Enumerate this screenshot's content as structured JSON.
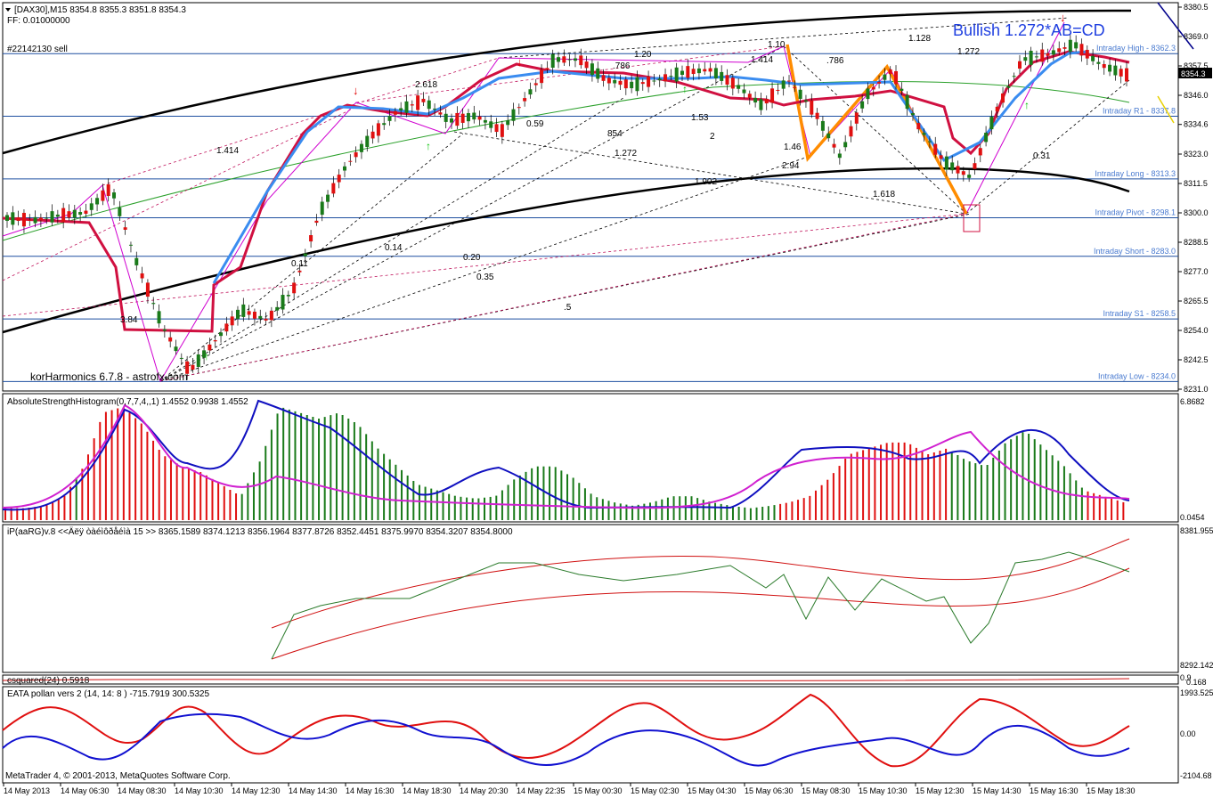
{
  "header": {
    "symbol_line": "[DAX30],M15  8354.8 8355.3 8351.8 8354.3",
    "ff_line": "FF: 0.01000000",
    "order_label": "#22142130 sell",
    "pattern_label": "Bullish 1.272*AB=CD",
    "watermark": "korHarmonics 6.7.8 - astrofx.com"
  },
  "price_axis": {
    "ticks": [
      "8380.5",
      "8369.0",
      "8357.5",
      "8346.0",
      "8334.6",
      "8323.0",
      "8311.5",
      "8300.0",
      "8288.5",
      "8277.0",
      "8265.5",
      "8254.0",
      "8242.5",
      "8231.0"
    ],
    "current_price": "8354.3",
    "colors": {
      "current_bg": "#000000"
    }
  },
  "levels": [
    {
      "label": "Intraday High - 8362.3",
      "price": 8362.3,
      "color": "#4a7bd0"
    },
    {
      "label": "Intraday R1 - 8337.8",
      "price": 8337.8,
      "color": "#4a7bd0"
    },
    {
      "label": "Intraday Long - 8313.3",
      "price": 8313.3,
      "color": "#4a7bd0"
    },
    {
      "label": "Intraday Pivot - 8298.1",
      "price": 8298.1,
      "color": "#4a7bd0"
    },
    {
      "label": "Intraday Short - 8283.0",
      "price": 8283.0,
      "color": "#4a7bd0"
    },
    {
      "label": "Intraday S1 - 8258.5",
      "price": 8258.5,
      "color": "#4a7bd0"
    },
    {
      "label": "Intraday Low - 8234.0",
      "price": 8234.0,
      "color": "#4a7bd0"
    }
  ],
  "fib_labels": [
    "1.414",
    "2.618",
    "1.20",
    "0.59",
    "854",
    "1.272",
    "1.53",
    "2",
    "1.46",
    "2.94",
    "1.618",
    "1.414",
    ".786",
    ".786",
    "1.10",
    "1.128",
    "1.272",
    "0.31",
    "1.902",
    "0.14",
    "0.11",
    "0.20",
    "0.35",
    ".5",
    "3.84"
  ],
  "panels": {
    "ash": {
      "title": "AbsoluteStrengthHistogram(0,7,7,4,,1) 1.4552 0.9938 1.4552",
      "top_value": "6.8682",
      "bottom_value": "0.0454"
    },
    "ip": {
      "title": "iP(aaRG)v.8 <<Äëÿ òàéìôðåéìà 15 >> 8365.1589 8374.1213 8356.1964 8377.8726 8352.4451 8375.9970 8354.3207 8354.8000",
      "top_value": "8381.955",
      "bottom_value": "8292.142"
    },
    "sq": {
      "title": "csquared(24) 0.5918",
      "v1": "0.9",
      "v2": "0.168"
    },
    "eata": {
      "title": "EATA pollan vers 2 (14, 14: 8 ) -715.7919 300.5325",
      "top_value": "1993.525",
      "mid_value": "0.00",
      "bottom_value": "-2104.68"
    }
  },
  "footer": "MetaTrader 4, © 2001-2013, MetaQuotes Software Corp.",
  "time_axis": [
    "14 May 2013",
    "14 May 06:30",
    "14 May 08:30",
    "14 May 10:30",
    "14 May 12:30",
    "14 May 14:30",
    "14 May 16:30",
    "14 May 18:30",
    "14 May 20:30",
    "14 May 22:35",
    "15 May 00:30",
    "15 May 02:30",
    "15 May 04:30",
    "15 May 06:30",
    "15 May 08:30",
    "15 May 10:30",
    "15 May 12:30",
    "15 May 14:30",
    "15 May 16:30",
    "15 May 18:30"
  ],
  "chart_data": {
    "type": "candlestick",
    "symbol": "[DAX30]",
    "timeframe": "M15",
    "ylim": [
      8231.0,
      8380.5
    ],
    "ohlc_last": {
      "open": 8354.8,
      "high": 8355.3,
      "low": 8351.8,
      "close": 8354.3
    },
    "close_path": [
      8298,
      8297,
      8299,
      8300,
      8310,
      8280,
      8255,
      8238,
      8250,
      8262,
      8258,
      8270,
      8300,
      8318,
      8330,
      8340,
      8344,
      8336,
      8338,
      8332,
      8346,
      8360,
      8360,
      8352,
      8350,
      8352,
      8355,
      8356,
      8350,
      8342,
      8352,
      8340,
      8322,
      8346,
      8356,
      8334,
      8320,
      8314,
      8340,
      8360,
      8362,
      8366,
      8358,
      8354
    ],
    "ash": {
      "top": 6.8682,
      "bottom": 0.0454
    },
    "ip": {
      "top": 8381.955,
      "bottom": 8292.142
    },
    "eata": {
      "top": 1993.525,
      "bottom": -2104.68
    }
  }
}
